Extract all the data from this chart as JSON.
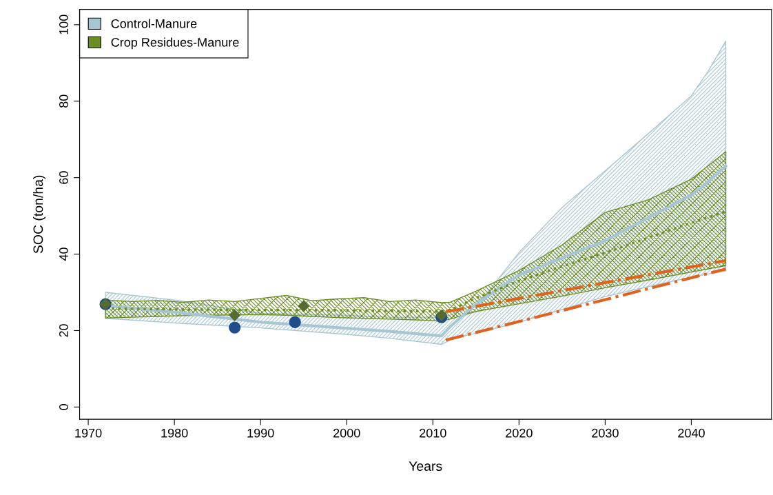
{
  "chart_data": {
    "type": "line",
    "xlabel": "Years",
    "ylabel": "SOC (ton/ha)",
    "xlim": [
      1969,
      2049.3
    ],
    "ylim": [
      -3.2,
      104
    ],
    "xticks": [
      1970,
      1980,
      1990,
      2000,
      2010,
      2020,
      2030,
      2040
    ],
    "yticks": [
      0,
      20,
      40,
      60,
      80,
      100
    ],
    "grid": false,
    "legend": "top left",
    "series": [
      {
        "name": "Control-Manure",
        "color": "#a7c6d4",
        "line_style": "solid",
        "x": [
          1972,
          1980,
          1990,
          2000,
          2005,
          2011,
          2012,
          2014,
          2016,
          2020,
          2025,
          2030,
          2035,
          2040,
          2042,
          2044
        ],
        "values": [
          26.5,
          24.8,
          22.2,
          20.6,
          19.8,
          18.6,
          21,
          25,
          28.5,
          34.5,
          39,
          43.5,
          49.5,
          55.5,
          59,
          63
        ],
        "lower": [
          23.2,
          22,
          20.7,
          19,
          18,
          16.4,
          17.5,
          18.8,
          19.8,
          22.2,
          25.5,
          28.9,
          31.5,
          34,
          34.8,
          35.6
        ],
        "upper": [
          30,
          28,
          24.5,
          24,
          23.5,
          23.5,
          24,
          26,
          29,
          40.4,
          52.2,
          61.8,
          71.5,
          81.4,
          88,
          95.7
        ]
      },
      {
        "name": "Crop Residues-Manure",
        "color": "#6b8e23",
        "line_style": "dotted",
        "x": [
          1972,
          1975,
          1978,
          1981,
          1984,
          1987,
          1990,
          1993,
          1996,
          1999,
          2002,
          2005,
          2008,
          2011,
          2012,
          2015,
          2020,
          2025,
          2030,
          2035,
          2040,
          2044
        ],
        "values": [
          25.8,
          25.7,
          25.6,
          25.5,
          25.5,
          25.4,
          25.4,
          25.4,
          25.3,
          25.3,
          25.2,
          25.1,
          25.1,
          25,
          25.3,
          28.5,
          33,
          36.8,
          40.3,
          44.3,
          48.2,
          51.1
        ],
        "lower": [
          23.3,
          23.5,
          23.7,
          23.9,
          24,
          24.1,
          24.2,
          24,
          23.7,
          23.4,
          23.2,
          23,
          22.8,
          22.5,
          23,
          25,
          27,
          29,
          31.2,
          33.2,
          35.3,
          37
        ],
        "upper": [
          28,
          27.6,
          27.9,
          27.4,
          28,
          27.6,
          28.4,
          29.2,
          27.8,
          28.3,
          28.6,
          27.6,
          28,
          27.3,
          27.4,
          30.3,
          35.7,
          42.4,
          50.9,
          54.2,
          59.6,
          66.8
        ]
      },
      {
        "color": "#e3621b",
        "line_style": "dashdot",
        "x": [
          2011.5,
          2044
        ],
        "values": [
          24.9,
          38.3
        ]
      },
      {
        "color": "#e3621b",
        "line_style": "dashdot",
        "x": [
          2011.5,
          2044
        ],
        "values": [
          17.5,
          36.1
        ]
      },
      {
        "type": "scatter",
        "marker": "circle",
        "color": "#1f4e8c",
        "x": [
          1972,
          1987,
          1994,
          2011
        ],
        "values": [
          26.9,
          20.8,
          22.2,
          23.5
        ]
      },
      {
        "type": "scatter",
        "marker": "diamond",
        "color": "#556b2f",
        "x": [
          1972,
          1987,
          1995,
          2011
        ],
        "values": [
          26.9,
          24.0,
          26.4,
          24.0
        ]
      }
    ]
  }
}
